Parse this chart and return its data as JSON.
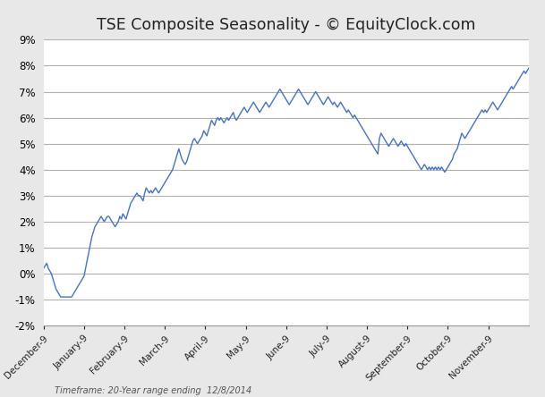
{
  "title": "TSE Composite Seasonality - © EquityClock.com",
  "subtitle": "Timeframe: 20-Year range ending  12/8/2014",
  "line_color": "#4472C4",
  "background_color": "#E8E8E8",
  "plot_bg_color": "#FFFFFF",
  "grid_color": "#B0B0B0",
  "ylim": [
    -0.02,
    0.09
  ],
  "yticks": [
    -0.02,
    -0.01,
    0.0,
    0.01,
    0.02,
    0.03,
    0.04,
    0.05,
    0.06,
    0.07,
    0.08,
    0.09
  ],
  "xtick_labels": [
    "December-9",
    "January-9",
    "February-9",
    "March-9",
    "April-9",
    "May-9",
    "June-9",
    "July-9",
    "August-9",
    "September-9",
    "October-9",
    "November-9"
  ],
  "y_values": [
    0.002,
    0.003,
    0.004,
    0.002,
    0.001,
    0.0,
    -0.002,
    -0.004,
    -0.006,
    -0.007,
    -0.008,
    -0.009,
    -0.009,
    -0.009,
    -0.009,
    -0.009,
    -0.009,
    -0.009,
    -0.009,
    -0.008,
    -0.007,
    -0.006,
    -0.005,
    -0.004,
    -0.003,
    -0.002,
    -0.001,
    0.002,
    0.005,
    0.008,
    0.011,
    0.014,
    0.016,
    0.018,
    0.019,
    0.02,
    0.021,
    0.022,
    0.021,
    0.02,
    0.021,
    0.022,
    0.022,
    0.021,
    0.02,
    0.019,
    0.018,
    0.019,
    0.02,
    0.022,
    0.021,
    0.023,
    0.022,
    0.021,
    0.023,
    0.025,
    0.027,
    0.028,
    0.029,
    0.03,
    0.031,
    0.03,
    0.03,
    0.029,
    0.028,
    0.031,
    0.033,
    0.032,
    0.031,
    0.032,
    0.031,
    0.032,
    0.033,
    0.032,
    0.031,
    0.032,
    0.033,
    0.034,
    0.035,
    0.036,
    0.037,
    0.038,
    0.039,
    0.04,
    0.042,
    0.044,
    0.046,
    0.048,
    0.046,
    0.044,
    0.043,
    0.042,
    0.043,
    0.045,
    0.047,
    0.049,
    0.051,
    0.052,
    0.051,
    0.05,
    0.051,
    0.052,
    0.053,
    0.055,
    0.054,
    0.053,
    0.055,
    0.057,
    0.059,
    0.058,
    0.057,
    0.059,
    0.06,
    0.059,
    0.06,
    0.059,
    0.058,
    0.059,
    0.06,
    0.059,
    0.06,
    0.061,
    0.062,
    0.06,
    0.059,
    0.06,
    0.061,
    0.062,
    0.063,
    0.064,
    0.063,
    0.062,
    0.063,
    0.064,
    0.065,
    0.066,
    0.065,
    0.064,
    0.063,
    0.062,
    0.063,
    0.064,
    0.065,
    0.066,
    0.065,
    0.064,
    0.065,
    0.066,
    0.067,
    0.068,
    0.069,
    0.07,
    0.071,
    0.07,
    0.069,
    0.068,
    0.067,
    0.066,
    0.065,
    0.066,
    0.067,
    0.068,
    0.069,
    0.07,
    0.071,
    0.07,
    0.069,
    0.068,
    0.067,
    0.066,
    0.065,
    0.066,
    0.067,
    0.068,
    0.069,
    0.07,
    0.069,
    0.068,
    0.067,
    0.066,
    0.065,
    0.066,
    0.067,
    0.068,
    0.067,
    0.066,
    0.065,
    0.066,
    0.065,
    0.064,
    0.065,
    0.066,
    0.065,
    0.064,
    0.063,
    0.062,
    0.063,
    0.062,
    0.061,
    0.06,
    0.061,
    0.06,
    0.059,
    0.058,
    0.057,
    0.056,
    0.055,
    0.054,
    0.053,
    0.052,
    0.051,
    0.05,
    0.049,
    0.048,
    0.047,
    0.046,
    0.052,
    0.054,
    0.053,
    0.052,
    0.051,
    0.05,
    0.049,
    0.05,
    0.051,
    0.052,
    0.051,
    0.05,
    0.049,
    0.05,
    0.051,
    0.05,
    0.049,
    0.05,
    0.049,
    0.048,
    0.047,
    0.046,
    0.045,
    0.044,
    0.043,
    0.042,
    0.041,
    0.04,
    0.041,
    0.042,
    0.041,
    0.04,
    0.041,
    0.04,
    0.041,
    0.04,
    0.041,
    0.04,
    0.041,
    0.04,
    0.041,
    0.04,
    0.039,
    0.04,
    0.041,
    0.042,
    0.043,
    0.044,
    0.046,
    0.047,
    0.048,
    0.05,
    0.052,
    0.054,
    0.053,
    0.052,
    0.053,
    0.054,
    0.055,
    0.056,
    0.057,
    0.058,
    0.059,
    0.06,
    0.061,
    0.062,
    0.063,
    0.062,
    0.063,
    0.062,
    0.063,
    0.064,
    0.065,
    0.066,
    0.065,
    0.064,
    0.063,
    0.064,
    0.065,
    0.066,
    0.067,
    0.068,
    0.069,
    0.07,
    0.071,
    0.072,
    0.071,
    0.072,
    0.073,
    0.074,
    0.075,
    0.076,
    0.077,
    0.078,
    0.077,
    0.078,
    0.079
  ]
}
